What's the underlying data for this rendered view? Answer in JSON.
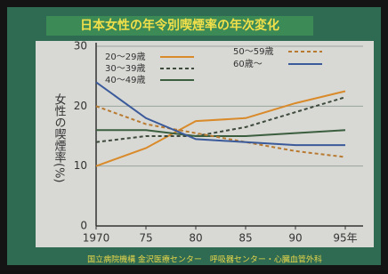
{
  "chart_data": {
    "type": "line",
    "title": "日本女性の年令別喫煙率の年次変化",
    "y_label": "女性の喫煙率(%)",
    "x": [
      1970,
      1975,
      1980,
      1985,
      1990,
      1995
    ],
    "series": [
      {
        "name": "20～29歳",
        "color": "#d98a2a",
        "dashed": false,
        "values": [
          10,
          13,
          17.5,
          18,
          20.5,
          22.5
        ]
      },
      {
        "name": "30～39歳",
        "color": "#3d4a3c",
        "dashed": true,
        "values": [
          14,
          15,
          15,
          16.5,
          19,
          21.5
        ]
      },
      {
        "name": "40～49歳",
        "color": "#3b5e3f",
        "dashed": false,
        "values": [
          16,
          16,
          15,
          15,
          15.5,
          16
        ]
      },
      {
        "name": "50～59歳",
        "color": "#b87a30",
        "dashed": true,
        "values": [
          20,
          17,
          15.5,
          14,
          12.5,
          11.5
        ]
      },
      {
        "name": "60歳～",
        "color": "#3a5a9a",
        "dashed": false,
        "values": [
          24,
          18,
          14.5,
          14,
          13.5,
          13.5
        ]
      }
    ],
    "xlim": [
      1970,
      1995
    ],
    "xticks": [
      1970,
      {
        "value": 1975,
        "label": "75"
      },
      {
        "value": 1980,
        "label": "80"
      },
      {
        "value": 1985,
        "label": "85"
      },
      {
        "value": 1990,
        "label": "90"
      },
      {
        "value": 1995,
        "label": "95年"
      }
    ],
    "ylim": [
      0,
      30
    ],
    "yticks": [
      0,
      10,
      20,
      30
    ],
    "grid": true
  },
  "footer": "国立病院機構 金沢医療センター　呼吸器センター・心臓血管外科"
}
